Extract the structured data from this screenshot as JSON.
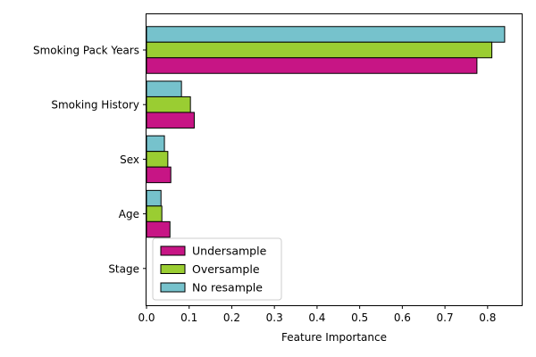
{
  "chart_data": {
    "type": "bar",
    "orientation": "horizontal",
    "categories": [
      "Smoking Pack Years",
      "Smoking History",
      "Sex",
      "Age",
      "Stage"
    ],
    "series": [
      {
        "name": "Undersample",
        "color": "#c71585",
        "values": [
          0.775,
          0.112,
          0.057,
          0.055,
          0.0
        ]
      },
      {
        "name": "Oversample",
        "color": "#9acd32",
        "values": [
          0.81,
          0.103,
          0.05,
          0.036,
          0.0
        ]
      },
      {
        "name": "No resample",
        "color": "#76c2cc",
        "values": [
          0.84,
          0.082,
          0.042,
          0.034,
          0.0
        ]
      }
    ],
    "xlabel": "Feature Importance",
    "ylabel": "",
    "xlim": [
      0,
      0.88
    ],
    "xticks": [
      0.0,
      0.1,
      0.2,
      0.3,
      0.4,
      0.5,
      0.6,
      0.7,
      0.8
    ],
    "xtick_labels": [
      "0.0",
      "0.1",
      "0.2",
      "0.3",
      "0.4",
      "0.5",
      "0.6",
      "0.7",
      "0.8"
    ],
    "grid": false,
    "legend_position": "lower-left"
  }
}
